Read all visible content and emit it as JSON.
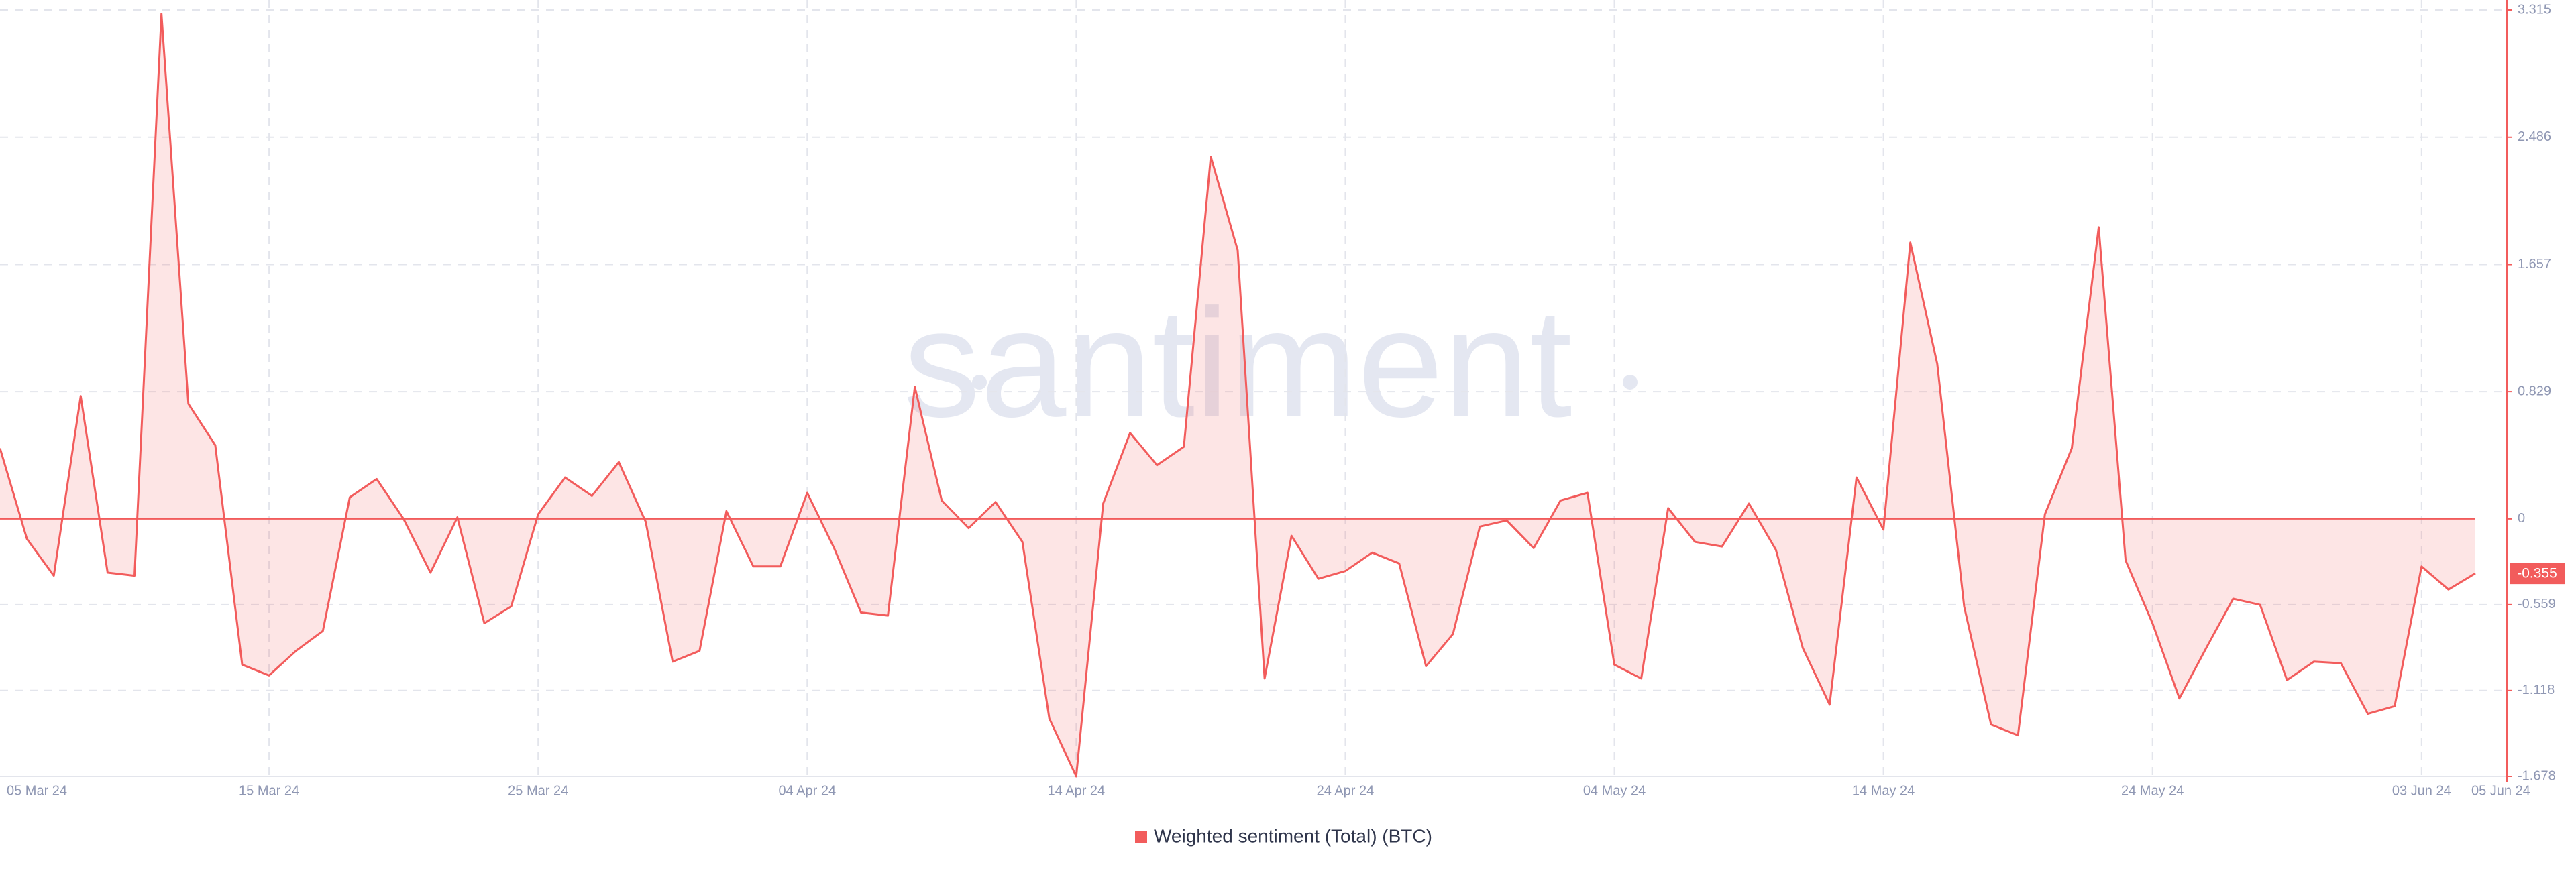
{
  "chart_data": {
    "type": "area",
    "watermark": "santiment",
    "categories": [
      "05 Mar 24",
      null,
      null,
      null,
      null,
      null,
      null,
      null,
      null,
      null,
      "15 Mar 24",
      null,
      null,
      null,
      null,
      null,
      null,
      null,
      null,
      null,
      "25 Mar 24",
      null,
      null,
      null,
      null,
      null,
      null,
      null,
      null,
      null,
      "04 Apr 24",
      null,
      null,
      null,
      null,
      null,
      null,
      null,
      null,
      null,
      "14 Apr 24",
      null,
      null,
      null,
      null,
      null,
      null,
      null,
      null,
      null,
      "24 Apr 24",
      null,
      null,
      null,
      null,
      null,
      null,
      null,
      null,
      null,
      "04 May 24",
      null,
      null,
      null,
      null,
      null,
      null,
      null,
      null,
      null,
      "14 May 24",
      null,
      null,
      null,
      null,
      null,
      null,
      null,
      null,
      null,
      "24 May 24",
      null,
      null,
      null,
      null,
      null,
      null,
      null,
      null,
      null,
      "03 Jun 24",
      null,
      "05 Jun 24"
    ],
    "series": [
      {
        "name": "Weighted sentiment (Total) (BTC)",
        "color": "#f25c5c",
        "values": [
          0.46,
          -0.13,
          -0.37,
          0.8,
          -0.35,
          -0.37,
          3.29,
          0.75,
          0.48,
          -0.95,
          -1.02,
          -0.86,
          -0.73,
          0.14,
          0.26,
          0,
          -0.35,
          0.01,
          -0.68,
          -0.57,
          0.03,
          0.27,
          0.15,
          0.37,
          -0.02,
          -0.93,
          -0.86,
          0.05,
          -0.31,
          -0.31,
          0.17,
          -0.19,
          -0.61,
          -0.63,
          0.86,
          0.12,
          -0.06,
          0.11,
          -0.15,
          -1.3,
          -1.678,
          0.1,
          0.56,
          0.35,
          0.47,
          2.36,
          1.75,
          -1.04,
          -0.11,
          -0.39,
          -0.34,
          -0.22,
          -0.29,
          -0.96,
          -0.75,
          -0.05,
          -0.01,
          -0.19,
          0.12,
          0.17,
          -0.95,
          -1.04,
          0.07,
          -0.15,
          -0.18,
          0.1,
          -0.2,
          -0.84,
          -1.21,
          0.27,
          -0.07,
          1.8,
          1.01,
          -0.57,
          -1.34,
          -1.41,
          0.03,
          0.46,
          1.9,
          -0.27,
          -0.68,
          -1.17,
          -0.84,
          -0.52,
          -0.56,
          -1.05,
          -0.93,
          -0.94,
          -1.27,
          -1.22,
          -0.31,
          -0.46,
          -0.355
        ]
      }
    ],
    "ylim": [
      -1.678,
      3.315
    ],
    "yticks": [
      -1.678,
      -1.118,
      -0.559,
      0,
      0.829,
      1.657,
      2.486,
      3.315
    ],
    "grid": true
  }
}
